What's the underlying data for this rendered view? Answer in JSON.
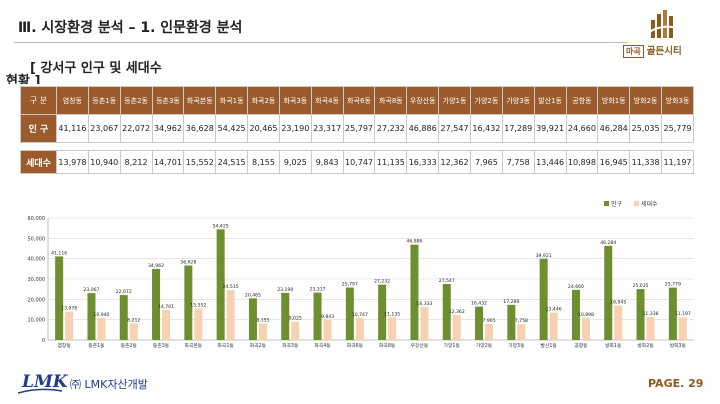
{
  "header": {
    "title": "Ⅲ. 시장환경 분석 – 1. 인문환경 분석",
    "subtitle_line1": "[ 강서구 인구 및 세대수",
    "subtitle_line2": "현황 ]"
  },
  "logo": {
    "box_text": "마곡",
    "name": "골든시티"
  },
  "table": {
    "corner": "구 분",
    "row_labels": [
      "인 구",
      "세대수"
    ],
    "columns": [
      "염창동",
      "등촌1동",
      "등촌2동",
      "등촌3동",
      "화곡본동",
      "화곡1동",
      "화곡2동",
      "화곡3동",
      "화곡4동",
      "화곡6동",
      "화곡8동",
      "우장산동",
      "가양1동",
      "가양2동",
      "가양3동",
      "발산1동",
      "공항동",
      "방화1동",
      "방화2동",
      "방화3동"
    ],
    "population": [
      "41,116",
      "23,067",
      "22,072",
      "34,962",
      "36,628",
      "54,425",
      "20,465",
      "23,190",
      "23,317",
      "25,797",
      "27,232",
      "46,886",
      "27,547",
      "16,432",
      "17,289",
      "39,921",
      "24,660",
      "46,284",
      "25,035",
      "25,779"
    ],
    "households": [
      "13,978",
      "10,940",
      "8,212",
      "14,701",
      "15,552",
      "24,515",
      "8,155",
      "9,025",
      "9,843",
      "10,747",
      "11,135",
      "16,333",
      "12,362",
      "7,965",
      "7,758",
      "13,446",
      "10,898",
      "16,945",
      "11,338",
      "11,197"
    ]
  },
  "chart_data": {
    "type": "bar",
    "categories": [
      "염창동",
      "등촌1동",
      "등촌2동",
      "등촌3동",
      "화곡본동",
      "화곡1동",
      "화곡2동",
      "화곡3동",
      "화곡4동",
      "화곡6동",
      "화곡8동",
      "우장산동",
      "가양1동",
      "가양2동",
      "가양3동",
      "발산1동",
      "공항동",
      "방화1동",
      "방화2동",
      "방화3동"
    ],
    "series": [
      {
        "name": "인구",
        "color": "#6e8f2f",
        "values": [
          41116,
          23067,
          22072,
          34962,
          36628,
          54425,
          20465,
          23190,
          23317,
          25797,
          27232,
          46886,
          27547,
          16432,
          17289,
          39921,
          24660,
          46284,
          25035,
          25779
        ]
      },
      {
        "name": "세대수",
        "color": "#f6d2b2",
        "values": [
          13978,
          10940,
          8212,
          14701,
          15552,
          24515,
          8155,
          9025,
          9843,
          10747,
          11135,
          16333,
          12362,
          7965,
          7758,
          13446,
          10898,
          16945,
          11338,
          11197
        ]
      }
    ],
    "ylim": [
      0,
      60000
    ],
    "yticks": [
      "0",
      "10,000",
      "20,000",
      "30,000",
      "40,000",
      "50,000",
      "60,000"
    ],
    "tick_values": [
      0,
      10000,
      20000,
      30000,
      40000,
      50000,
      60000
    ],
    "legend_position": "top-right",
    "grid": true
  },
  "footer": {
    "logo_text": "LMK",
    "company": "㈜ LMK자산개발",
    "page": "PAGE. 29"
  }
}
